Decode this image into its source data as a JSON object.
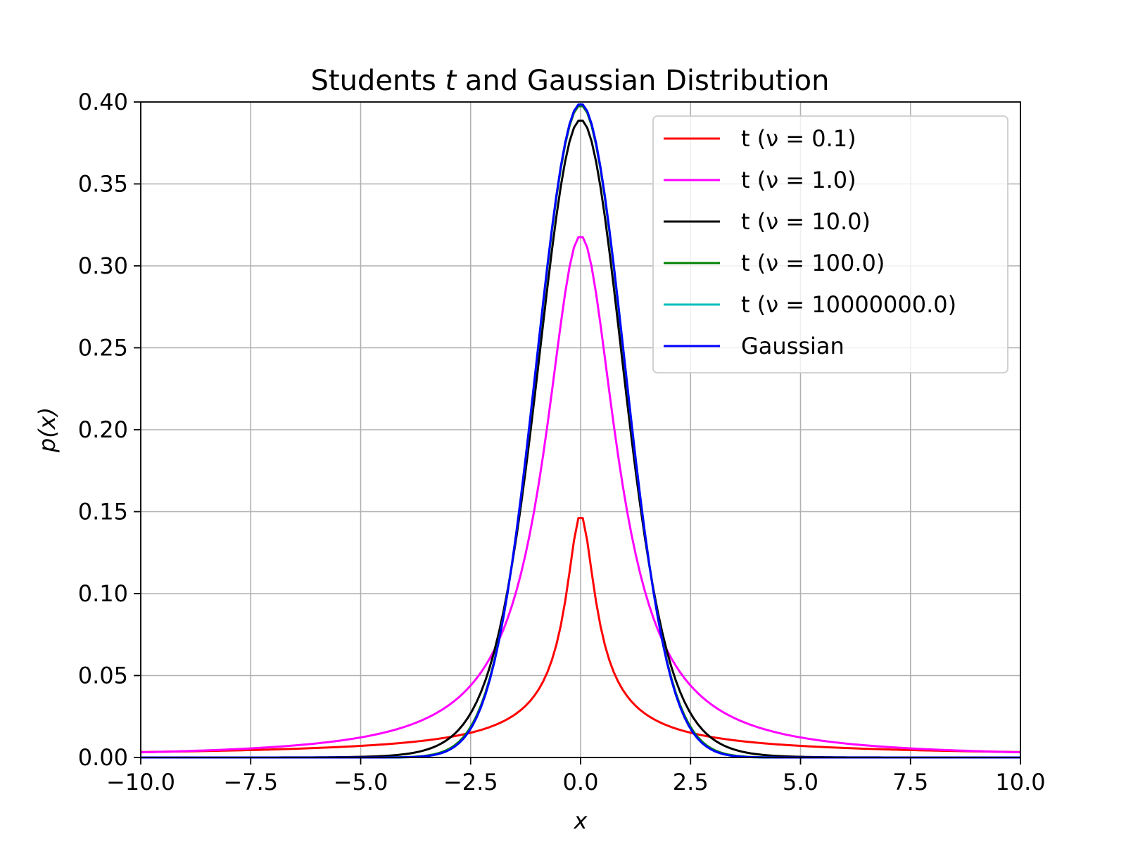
{
  "chart_data": {
    "type": "line",
    "title_prefix": "Students ",
    "title_italic": "t",
    "title_suffix": " and Gaussian Distribution",
    "xlabel": "x",
    "ylabel": "p(x)",
    "xlim": [
      -10,
      10
    ],
    "ylim": [
      0,
      0.4
    ],
    "grid": true,
    "legend_position": "top-right",
    "xticks": [
      -10,
      -7.5,
      -5,
      -2.5,
      0,
      2.5,
      5,
      7.5,
      10
    ],
    "xtick_labels": [
      "−10.0",
      "−7.5",
      "−5.0",
      "−2.5",
      "0.0",
      "2.5",
      "5.0",
      "7.5",
      "10.0"
    ],
    "yticks": [
      0,
      0.05,
      0.1,
      0.15,
      0.2,
      0.25,
      0.3,
      0.35,
      0.4
    ],
    "ytick_labels": [
      "0.00",
      "0.05",
      "0.10",
      "0.15",
      "0.20",
      "0.25",
      "0.30",
      "0.35",
      "0.40"
    ],
    "series": [
      {
        "name": "t (ν = 0.1)",
        "kind": "t",
        "nu": 0.1,
        "color": "#ff0000"
      },
      {
        "name": "t (ν = 1.0)",
        "kind": "t",
        "nu": 1.0,
        "color": "#ff00ff"
      },
      {
        "name": "t (ν = 10.0)",
        "kind": "t",
        "nu": 10.0,
        "color": "#000000"
      },
      {
        "name": "t (ν = 100.0)",
        "kind": "t",
        "nu": 100.0,
        "color": "#008000"
      },
      {
        "name": "t (ν = 10000000.0)",
        "kind": "t",
        "nu": 10000000.0,
        "color": "#00bfbf"
      },
      {
        "name": "Gaussian",
        "kind": "gaussian",
        "color": "#0000ff"
      }
    ]
  }
}
